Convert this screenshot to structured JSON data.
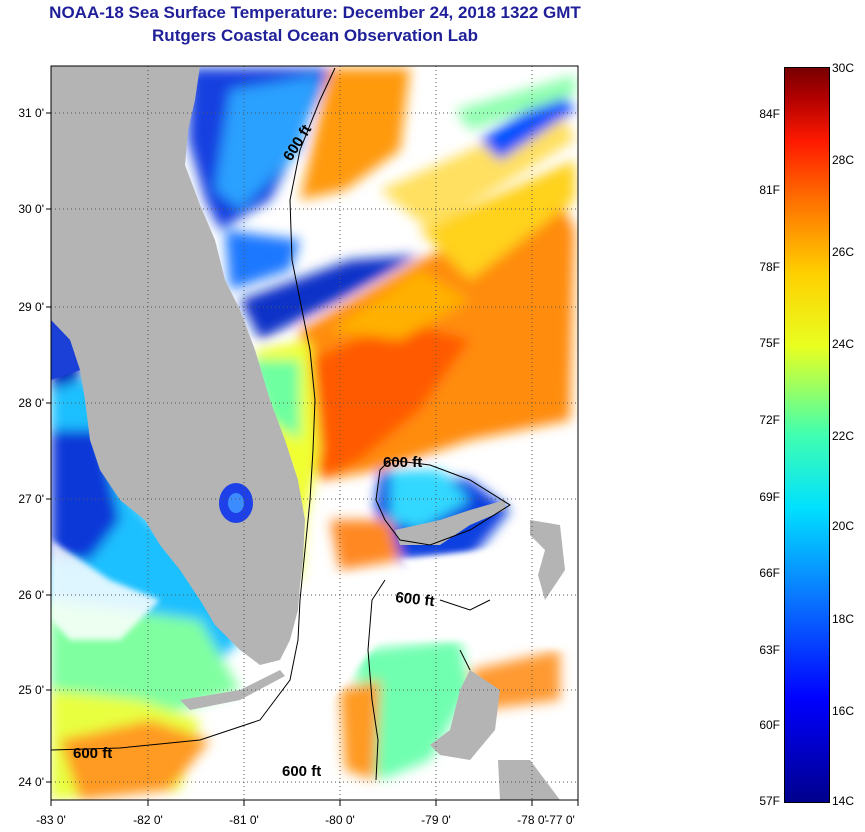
{
  "header": {
    "title": "NOAA-18 Sea Surface Temperature:  December 24, 2018 1322 GMT",
    "subtitle": "Rutgers Coastal Ocean Observation Lab"
  },
  "axes": {
    "lat_labels": [
      "31 0'",
      "30 0'",
      "29 0'",
      "28 0'",
      "27 0'",
      "26 0'",
      "25 0'",
      "24 0'"
    ],
    "lon_labels": [
      "-83 0'",
      "-82 0'",
      "-81 0'",
      "-80 0'",
      "-79 0'",
      "-78 0'",
      "-77 0'"
    ]
  },
  "contours": {
    "label_a": "600 ft",
    "label_b": "600 ft",
    "label_c": "600 ft",
    "label_d": "600 ft",
    "label_e": "600 ft"
  },
  "colorbar": {
    "celsius": [
      "30C",
      "28C",
      "26C",
      "24C",
      "22C",
      "20C",
      "18C",
      "16C",
      "14C"
    ],
    "fahrenheit": [
      "84F",
      "81F",
      "78F",
      "75F",
      "72F",
      "69F",
      "66F",
      "63F",
      "60F",
      "57F"
    ]
  },
  "colors": {
    "land": "#b4b4b4",
    "title": "#1f1f99"
  }
}
